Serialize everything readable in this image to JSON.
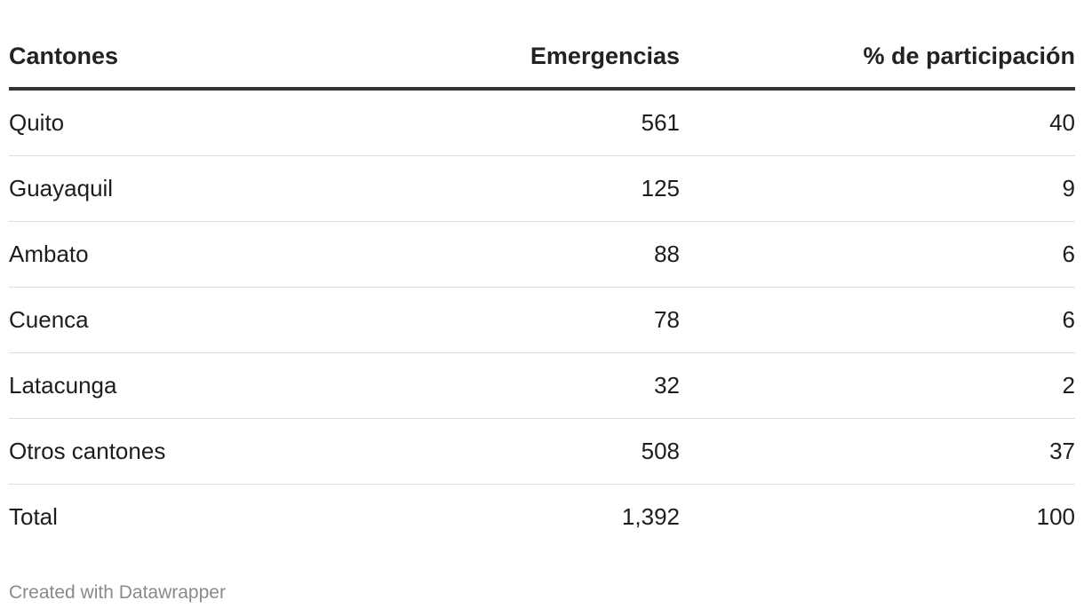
{
  "chart_data": {
    "type": "table",
    "columns": [
      "Cantones",
      "Emergencias",
      "% de participación"
    ],
    "rows": [
      {
        "canton": "Quito",
        "emergencias": "561",
        "participacion": "40"
      },
      {
        "canton": "Guayaquil",
        "emergencias": "125",
        "participacion": "9"
      },
      {
        "canton": "Ambato",
        "emergencias": "88",
        "participacion": "6"
      },
      {
        "canton": "Cuenca",
        "emergencias": "78",
        "participacion": "6"
      },
      {
        "canton": "Latacunga",
        "emergencias": "32",
        "participacion": "2"
      },
      {
        "canton": "Otros cantones",
        "emergencias": "508",
        "participacion": "37"
      },
      {
        "canton": "Total",
        "emergencias": "1,392",
        "participacion": "100"
      }
    ]
  },
  "footer": {
    "credit": "Created with Datawrapper"
  }
}
